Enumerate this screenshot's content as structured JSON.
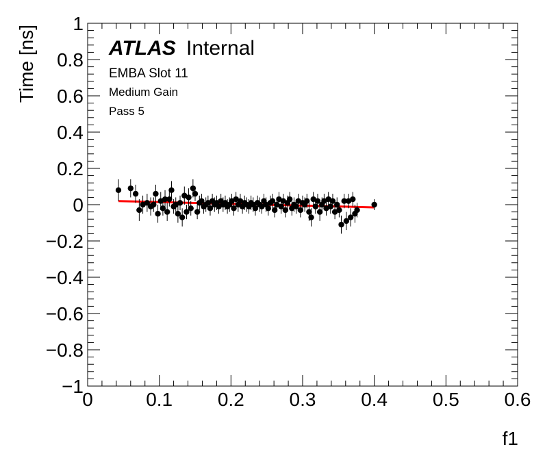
{
  "chart_data": {
    "type": "scatter",
    "xlabel": "f1",
    "ylabel": "Time [ns]",
    "xlim": [
      0,
      0.6
    ],
    "ylim": [
      -1,
      1
    ],
    "x_ticks": [
      "0",
      "0.1",
      "0.2",
      "0.3",
      "0.4",
      "0.5",
      "0.6"
    ],
    "y_ticks": [
      "−1",
      "−0.8",
      "−0.6",
      "−0.4",
      "−0.2",
      "0",
      "0.2",
      "0.4",
      "0.6",
      "0.8",
      "1"
    ],
    "grid": false,
    "annotations": {
      "atlas": "ATLAS",
      "internal": "Internal",
      "line1": "EMBA Slot 11",
      "line2": "Medium Gain",
      "line3": "Pass 5"
    },
    "series": [
      {
        "kind": "points_with_errors",
        "color": "#000000",
        "points": [
          [
            0.043,
            0.08,
            0.06
          ],
          [
            0.06,
            0.09,
            0.05
          ],
          [
            0.067,
            0.06,
            0.05
          ],
          [
            0.072,
            -0.03,
            0.06
          ],
          [
            0.077,
            0.0,
            0.05
          ],
          [
            0.083,
            0.01,
            0.05
          ],
          [
            0.088,
            -0.01,
            0.05
          ],
          [
            0.092,
            0.0,
            0.04
          ],
          [
            0.095,
            0.06,
            0.05
          ],
          [
            0.098,
            -0.05,
            0.05
          ],
          [
            0.102,
            0.02,
            0.05
          ],
          [
            0.105,
            -0.02,
            0.04
          ],
          [
            0.108,
            0.03,
            0.05
          ],
          [
            0.111,
            -0.04,
            0.05
          ],
          [
            0.114,
            0.03,
            0.04
          ],
          [
            0.117,
            0.08,
            0.05
          ],
          [
            0.12,
            -0.01,
            0.04
          ],
          [
            0.123,
            0.0,
            0.04
          ],
          [
            0.126,
            -0.05,
            0.05
          ],
          [
            0.129,
            0.01,
            0.04
          ],
          [
            0.132,
            -0.07,
            0.05
          ],
          [
            0.135,
            0.05,
            0.05
          ],
          [
            0.138,
            -0.04,
            0.04
          ],
          [
            0.141,
            0.04,
            0.05
          ],
          [
            0.144,
            -0.02,
            0.04
          ],
          [
            0.147,
            0.09,
            0.05
          ],
          [
            0.15,
            0.06,
            0.04
          ],
          [
            0.153,
            -0.04,
            0.04
          ],
          [
            0.156,
            0.01,
            0.04
          ],
          [
            0.159,
            0.02,
            0.04
          ],
          [
            0.162,
            -0.01,
            0.04
          ],
          [
            0.165,
            0.0,
            0.04
          ],
          [
            0.168,
            0.01,
            0.04
          ],
          [
            0.171,
            -0.02,
            0.04
          ],
          [
            0.174,
            0.02,
            0.04
          ],
          [
            0.177,
            0.0,
            0.04
          ],
          [
            0.18,
            0.01,
            0.04
          ],
          [
            0.183,
            -0.01,
            0.04
          ],
          [
            0.186,
            0.02,
            0.04
          ],
          [
            0.189,
            0.0,
            0.04
          ],
          [
            0.192,
            0.01,
            0.04
          ],
          [
            0.195,
            -0.01,
            0.04
          ],
          [
            0.198,
            0.0,
            0.04
          ],
          [
            0.201,
            0.02,
            0.04
          ],
          [
            0.204,
            -0.02,
            0.04
          ],
          [
            0.207,
            0.03,
            0.04
          ],
          [
            0.21,
            0.0,
            0.04
          ],
          [
            0.213,
            0.02,
            0.04
          ],
          [
            0.216,
            -0.01,
            0.04
          ],
          [
            0.219,
            0.01,
            0.04
          ],
          [
            0.222,
            0.0,
            0.04
          ],
          [
            0.225,
            -0.01,
            0.04
          ],
          [
            0.228,
            0.01,
            0.04
          ],
          [
            0.231,
            0.0,
            0.04
          ],
          [
            0.234,
            -0.02,
            0.04
          ],
          [
            0.237,
            0.01,
            0.04
          ],
          [
            0.24,
            0.0,
            0.04
          ],
          [
            0.243,
            -0.01,
            0.04
          ],
          [
            0.246,
            0.02,
            0.04
          ],
          [
            0.249,
            0.0,
            0.04
          ],
          [
            0.252,
            -0.02,
            0.04
          ],
          [
            0.255,
            0.01,
            0.04
          ],
          [
            0.258,
            0.02,
            0.04
          ],
          [
            0.261,
            -0.03,
            0.04
          ],
          [
            0.264,
            0.0,
            0.04
          ],
          [
            0.267,
            0.03,
            0.04
          ],
          [
            0.27,
            -0.01,
            0.04
          ],
          [
            0.273,
            0.02,
            0.04
          ],
          [
            0.276,
            -0.03,
            0.04
          ],
          [
            0.279,
            0.01,
            0.04
          ],
          [
            0.282,
            0.03,
            0.04
          ],
          [
            0.285,
            -0.02,
            0.04
          ],
          [
            0.288,
            0.0,
            0.04
          ],
          [
            0.291,
            -0.01,
            0.04
          ],
          [
            0.294,
            0.02,
            0.04
          ],
          [
            0.297,
            -0.03,
            0.04
          ],
          [
            0.3,
            0.01,
            0.04
          ],
          [
            0.303,
            0.0,
            0.04
          ],
          [
            0.306,
            0.02,
            0.04
          ],
          [
            0.309,
            -0.04,
            0.05
          ],
          [
            0.312,
            -0.07,
            0.05
          ],
          [
            0.315,
            0.03,
            0.04
          ],
          [
            0.318,
            -0.01,
            0.04
          ],
          [
            0.321,
            0.02,
            0.04
          ],
          [
            0.324,
            -0.04,
            0.05
          ],
          [
            0.327,
            0.0,
            0.04
          ],
          [
            0.33,
            0.02,
            0.04
          ],
          [
            0.333,
            -0.02,
            0.04
          ],
          [
            0.336,
            0.03,
            0.04
          ],
          [
            0.339,
            -0.01,
            0.04
          ],
          [
            0.342,
            0.02,
            0.04
          ],
          [
            0.345,
            -0.04,
            0.04
          ],
          [
            0.348,
            0.0,
            0.04
          ],
          [
            0.351,
            -0.03,
            0.04
          ],
          [
            0.354,
            -0.11,
            0.05
          ],
          [
            0.358,
            0.02,
            0.04
          ],
          [
            0.361,
            -0.09,
            0.05
          ],
          [
            0.364,
            0.02,
            0.04
          ],
          [
            0.367,
            -0.07,
            0.05
          ],
          [
            0.37,
            0.03,
            0.04
          ],
          [
            0.373,
            -0.05,
            0.05
          ],
          [
            0.376,
            -0.03,
            0.04
          ],
          [
            0.4,
            0.0,
            0.03
          ]
        ]
      },
      {
        "kind": "fit_line",
        "color": "#ff0000",
        "x": [
          0.043,
          0.4
        ],
        "y": [
          0.02,
          -0.015
        ]
      }
    ]
  }
}
